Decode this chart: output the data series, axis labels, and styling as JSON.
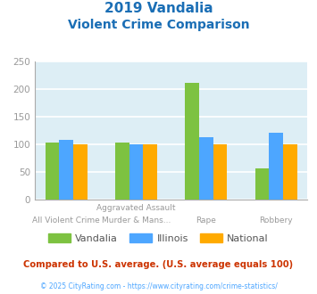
{
  "title_line1": "2019 Vandalia",
  "title_line2": "Violent Crime Comparison",
  "categories_top": [
    "",
    "Aggravated Assault",
    "",
    ""
  ],
  "categories_bot": [
    "All Violent Crime",
    "Murder & Mans...",
    "Rape",
    "Robbery"
  ],
  "series": {
    "Vandalia": [
      103,
      103,
      211,
      57
    ],
    "Illinois": [
      109,
      100,
      114,
      121
    ],
    "National": [
      100,
      100,
      100,
      100
    ]
  },
  "colors": {
    "Vandalia": "#7dc241",
    "Illinois": "#4da6ff",
    "National": "#ffaa00"
  },
  "ylim": [
    0,
    250
  ],
  "yticks": [
    0,
    50,
    100,
    150,
    200,
    250
  ],
  "axis_bg": "#ddeef5",
  "title_color": "#1a6eb5",
  "footnote": "Compared to U.S. average. (U.S. average equals 100)",
  "copyright": "© 2025 CityRating.com - https://www.cityrating.com/crime-statistics/",
  "footnote_color": "#cc3300",
  "copyright_color": "#4da6ff",
  "grid_color": "#ffffff",
  "tick_color": "#999999",
  "legend_text_color": "#555555"
}
